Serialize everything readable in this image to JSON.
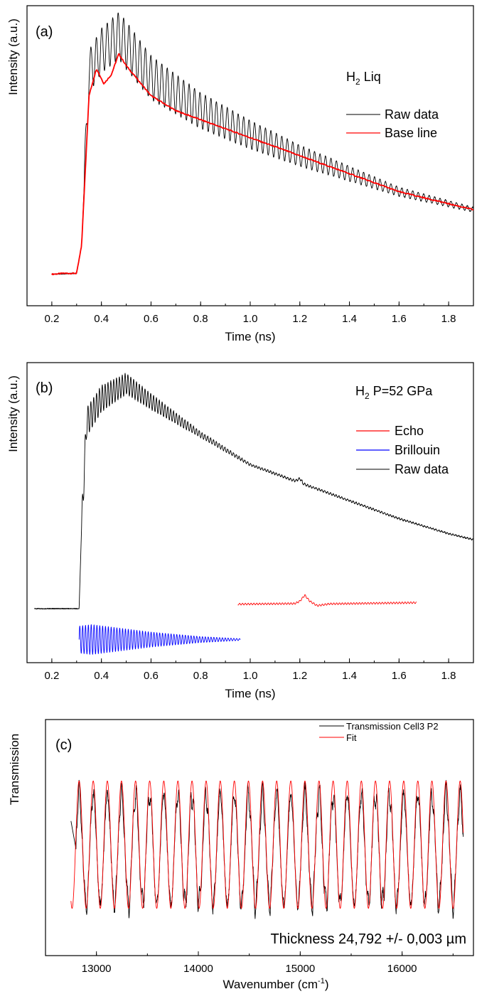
{
  "chart_data": [
    {
      "type": "line",
      "panel_label": "(a)",
      "sample_label": {
        "main": "H",
        "sub": "2",
        "rest": " Liq"
      },
      "xlabel": "Time (ns)",
      "ylabel": "Intensity (a.u.)",
      "xlim": [
        0.1,
        1.9
      ],
      "ylim": [
        0,
        1
      ],
      "xticks": [
        0.2,
        0.4,
        0.6,
        0.8,
        1.0,
        1.2,
        1.4,
        1.6,
        1.8
      ],
      "xtick_labels": [
        "0.2",
        "0.4",
        "0.6",
        "0.8",
        "1.0",
        "1.2",
        "1.4",
        "1.6",
        "1.8"
      ],
      "y_ticks_labeled": false,
      "legend_position": "top-right",
      "series": [
        {
          "name": "Raw data",
          "color": "#000000",
          "envelope": [
            [
              0.2,
              0.105
            ],
            [
              0.3,
              0.108
            ],
            [
              0.32,
              0.2
            ],
            [
              0.35,
              0.78
            ],
            [
              0.4,
              0.85
            ],
            [
              0.47,
              0.9
            ],
            [
              0.6,
              0.76
            ],
            [
              0.8,
              0.65
            ],
            [
              1.0,
              0.57
            ],
            [
              1.2,
              0.5
            ],
            [
              1.4,
              0.44
            ],
            [
              1.6,
              0.38
            ],
            [
              1.8,
              0.34
            ],
            [
              1.9,
              0.32
            ]
          ],
          "oscillation_period_ns": 0.022,
          "oscillation_amplitude": [
            [
              0.33,
              0.07
            ],
            [
              0.5,
              0.08
            ],
            [
              0.8,
              0.06
            ],
            [
              1.2,
              0.035
            ],
            [
              1.6,
              0.015
            ],
            [
              1.9,
              0.008
            ]
          ]
        },
        {
          "name": "Base line",
          "color": "#ff0000",
          "points": [
            [
              0.2,
              0.105
            ],
            [
              0.25,
              0.108
            ],
            [
              0.3,
              0.108
            ],
            [
              0.32,
              0.2
            ],
            [
              0.35,
              0.7
            ],
            [
              0.38,
              0.79
            ],
            [
              0.41,
              0.74
            ],
            [
              0.44,
              0.77
            ],
            [
              0.47,
              0.84
            ],
            [
              0.5,
              0.8
            ],
            [
              0.6,
              0.7
            ],
            [
              0.7,
              0.65
            ],
            [
              0.8,
              0.62
            ],
            [
              1.0,
              0.56
            ],
            [
              1.2,
              0.5
            ],
            [
              1.4,
              0.44
            ],
            [
              1.6,
              0.38
            ],
            [
              1.8,
              0.34
            ],
            [
              1.9,
              0.32
            ]
          ]
        }
      ]
    },
    {
      "type": "line",
      "panel_label": "(b)",
      "sample_label": {
        "main": "H",
        "sub": "2",
        "rest": " P=52 GPa"
      },
      "xlabel": "Time (ns)",
      "ylabel": "Intensity (a.u.)",
      "xlim": [
        0.1,
        1.9
      ],
      "ylim": [
        0,
        1
      ],
      "xticks": [
        0.2,
        0.4,
        0.6,
        0.8,
        1.0,
        1.2,
        1.4,
        1.6,
        1.8
      ],
      "xtick_labels": [
        "0.2",
        "0.4",
        "0.6",
        "0.8",
        "1.0",
        "1.2",
        "1.4",
        "1.6",
        "1.8"
      ],
      "y_ticks_labeled": false,
      "legend_position": "top-right",
      "series": [
        {
          "name": "Echo",
          "color": "#ff0000",
          "points": [
            [
              0.95,
              0.195
            ],
            [
              1.18,
              0.197
            ],
            [
              1.2,
              0.205
            ],
            [
              1.22,
              0.225
            ],
            [
              1.24,
              0.205
            ],
            [
              1.27,
              0.19
            ],
            [
              1.32,
              0.196
            ],
            [
              1.67,
              0.2
            ]
          ]
        },
        {
          "name": "Brillouin",
          "color": "#0000ff",
          "center": 0.077,
          "x_range": [
            0.31,
            0.96
          ],
          "oscillation_period_ns": 0.0115,
          "amplitude": [
            [
              0.31,
              0.045
            ],
            [
              0.36,
              0.05
            ],
            [
              0.6,
              0.025
            ],
            [
              0.8,
              0.01
            ],
            [
              0.96,
              0.003
            ]
          ]
        },
        {
          "name": "Raw data",
          "color": "#000000",
          "envelope": [
            [
              0.13,
              0.18
            ],
            [
              0.31,
              0.18
            ],
            [
              0.32,
              0.45
            ],
            [
              0.34,
              0.8
            ],
            [
              0.4,
              0.88
            ],
            [
              0.5,
              0.93
            ],
            [
              0.6,
              0.87
            ],
            [
              0.8,
              0.76
            ],
            [
              1.0,
              0.66
            ],
            [
              1.2,
              0.6
            ],
            [
              1.4,
              0.54
            ],
            [
              1.6,
              0.48
            ],
            [
              1.8,
              0.43
            ],
            [
              1.9,
              0.41
            ]
          ],
          "bump": {
            "x": 1.2,
            "height": 0.012
          },
          "oscillation_period_ns": 0.0115,
          "oscillation_amplitude": [
            [
              0.33,
              0.05
            ],
            [
              0.5,
              0.035
            ],
            [
              0.8,
              0.01
            ],
            [
              1.0,
              0.004
            ],
            [
              1.9,
              0.002
            ]
          ]
        }
      ]
    },
    {
      "type": "line",
      "panel_label": "(c)",
      "xlabel": {
        "text": "Wavenumber (cm",
        "sup": "-1",
        "end": ")"
      },
      "ylabel": "Transmission",
      "xlim": [
        12500,
        16700
      ],
      "ylim": [
        0,
        1
      ],
      "xticks": [
        13000,
        14000,
        15000,
        16000
      ],
      "xtick_labels": [
        "13000",
        "14000",
        "15000",
        "16000"
      ],
      "y_ticks_labeled": false,
      "legend_position": "top-right",
      "annotation": "Thickness 24,792 +/- 0,003 µm",
      "series": [
        {
          "name": "Transmission Cell3 P2",
          "color": "#000000",
          "x_range": [
            12750,
            16600
          ],
          "fringe_period_cm-1": 138.5,
          "baseline": 0.45,
          "amplitude": 0.28
        },
        {
          "name": "Fit",
          "color": "#ff0000",
          "x_range": [
            12750,
            16600
          ],
          "fringe_period_cm-1": 138.5,
          "baseline": 0.47,
          "amplitude": 0.27
        }
      ]
    }
  ]
}
